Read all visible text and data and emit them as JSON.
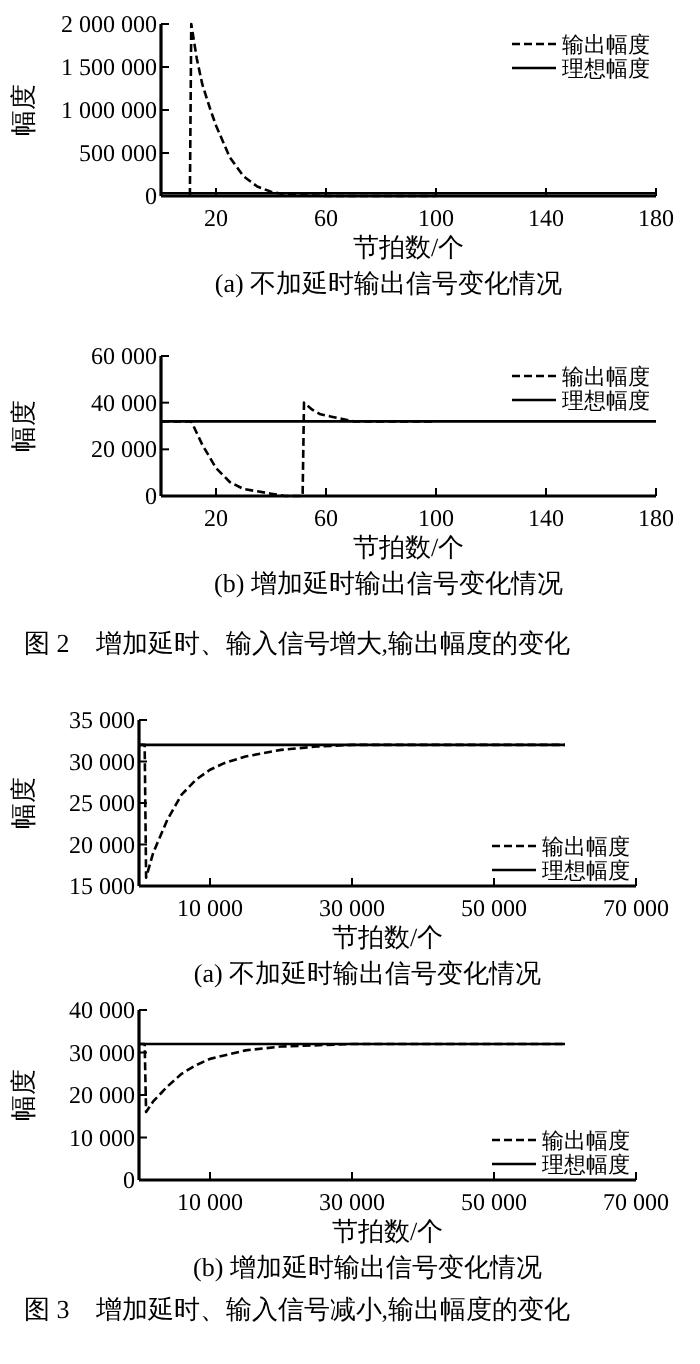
{
  "chart_data": [
    {
      "type": "line",
      "title": "(a) 不加延时输出信号变化情况",
      "xlabel": "节拍数/个",
      "ylabel": "幅度",
      "xlim": [
        0,
        180
      ],
      "xticks": [
        20,
        60,
        100,
        140,
        180
      ],
      "ylim": [
        0,
        2000000
      ],
      "yticks": [
        {
          "value": 0,
          "label": "0"
        },
        {
          "value": 500000,
          "label": "500 000"
        },
        {
          "value": 1000000,
          "label": "1 000 000"
        },
        {
          "value": 1500000,
          "label": "1 500 000"
        },
        {
          "value": 2000000,
          "label": "2 000 000"
        }
      ],
      "legend": "top right",
      "grid": false,
      "series": [
        {
          "name": "输出幅度",
          "color": "#000000",
          "line_style": "dashed",
          "x": [
            10.5,
            11,
            13,
            15,
            18,
            20,
            25,
            30,
            35,
            40,
            45,
            50,
            60,
            100
          ],
          "values": [
            0,
            2000000,
            1600000,
            1300000,
            1000000,
            820000,
            450000,
            230000,
            110000,
            50000,
            20000,
            10000,
            0,
            0
          ]
        },
        {
          "name": "理想幅度",
          "color": "#000000",
          "line_style": "solid",
          "x": [
            0,
            180
          ],
          "values": [
            32000,
            32000
          ]
        }
      ]
    },
    {
      "type": "line",
      "title": "(b) 增加延时输出信号变化情况",
      "xlabel": "节拍数/个",
      "ylabel": "幅度",
      "xlim": [
        0,
        180
      ],
      "xticks": [
        20,
        60,
        100,
        140,
        180
      ],
      "ylim": [
        0,
        60000
      ],
      "yticks": [
        {
          "value": 0,
          "label": "0"
        },
        {
          "value": 20000,
          "label": "20 000"
        },
        {
          "value": 40000,
          "label": "40 000"
        },
        {
          "value": 60000,
          "label": "60 000"
        }
      ],
      "legend": "top right",
      "grid": false,
      "annotations": [
        "图 2　增加延时、输入信号增大,输出幅度的变化"
      ],
      "series": [
        {
          "name": "输出幅度",
          "color": "#000000",
          "line_style": "dashed",
          "x": [
            0,
            11,
            15,
            20,
            25,
            30,
            35,
            40,
            45,
            51.5,
            52,
            55,
            58,
            62,
            66,
            70,
            80,
            100
          ],
          "values": [
            32000,
            32000,
            22000,
            12000,
            6000,
            3000,
            2000,
            1000,
            0,
            0,
            40000,
            37000,
            35000,
            34000,
            33000,
            32000,
            32000,
            32000
          ]
        },
        {
          "name": "理想幅度",
          "color": "#000000",
          "line_style": "solid",
          "x": [
            0,
            180
          ],
          "values": [
            32000,
            32000
          ]
        }
      ]
    },
    {
      "type": "line",
      "title": "(a) 不加延时输出信号变化情况",
      "xlabel": "节拍数/个",
      "ylabel": "幅度",
      "xlim": [
        0,
        70000
      ],
      "xticks": [
        {
          "value": 10000,
          "label": "10 000"
        },
        {
          "value": 30000,
          "label": "30 000"
        },
        {
          "value": 50000,
          "label": "50 000"
        },
        {
          "value": 70000,
          "label": "70 000"
        }
      ],
      "ylim": [
        15000,
        35000
      ],
      "yticks": [
        {
          "value": 15000,
          "label": "15 000"
        },
        {
          "value": 20000,
          "label": "20 000"
        },
        {
          "value": 25000,
          "label": "25 000"
        },
        {
          "value": 30000,
          "label": "30 000"
        },
        {
          "value": 35000,
          "label": "35 000"
        }
      ],
      "legend": "bottom right",
      "grid": false,
      "series": [
        {
          "name": "输出幅度",
          "color": "#000000",
          "line_style": "dashed",
          "x": [
            0,
            800,
            1000,
            2000,
            4000,
            6000,
            8000,
            10000,
            12000,
            15000,
            20000,
            25000,
            30000,
            60000
          ],
          "values": [
            32000,
            32000,
            16000,
            19000,
            23000,
            26000,
            27800,
            29000,
            29800,
            30600,
            31400,
            31800,
            32000,
            32000
          ]
        },
        {
          "name": "理想幅度",
          "color": "#000000",
          "line_style": "solid",
          "x": [
            0,
            60000
          ],
          "values": [
            32000,
            32000
          ]
        }
      ]
    },
    {
      "type": "line",
      "title": "(b) 增加延时输出信号变化情况",
      "xlabel": "节拍数/个",
      "ylabel": "幅度",
      "xlim": [
        0,
        70000
      ],
      "xticks": [
        {
          "value": 10000,
          "label": "10 000"
        },
        {
          "value": 30000,
          "label": "30 000"
        },
        {
          "value": 50000,
          "label": "50 000"
        },
        {
          "value": 70000,
          "label": "70 000"
        }
      ],
      "ylim": [
        0,
        40000
      ],
      "yticks": [
        {
          "value": 0,
          "label": "0"
        },
        {
          "value": 10000,
          "label": "10 000"
        },
        {
          "value": 20000,
          "label": "20 000"
        },
        {
          "value": 30000,
          "label": "30 000"
        },
        {
          "value": 40000,
          "label": "40 000"
        }
      ],
      "legend": "bottom right",
      "grid": false,
      "annotations": [
        "图 3　增加延时、输入信号减小,输出幅度的变化"
      ],
      "series": [
        {
          "name": "输出幅度",
          "color": "#000000",
          "line_style": "dashed",
          "x": [
            0,
            800,
            1000,
            2000,
            4000,
            6000,
            8000,
            10000,
            15000,
            20000,
            30000,
            60000
          ],
          "values": [
            32000,
            32000,
            16000,
            18500,
            22000,
            25000,
            27000,
            28500,
            30500,
            31400,
            32000,
            32000
          ]
        },
        {
          "name": "理想幅度",
          "color": "#000000",
          "line_style": "solid",
          "x": [
            0,
            60000
          ],
          "values": [
            32000,
            32000
          ]
        }
      ]
    }
  ]
}
